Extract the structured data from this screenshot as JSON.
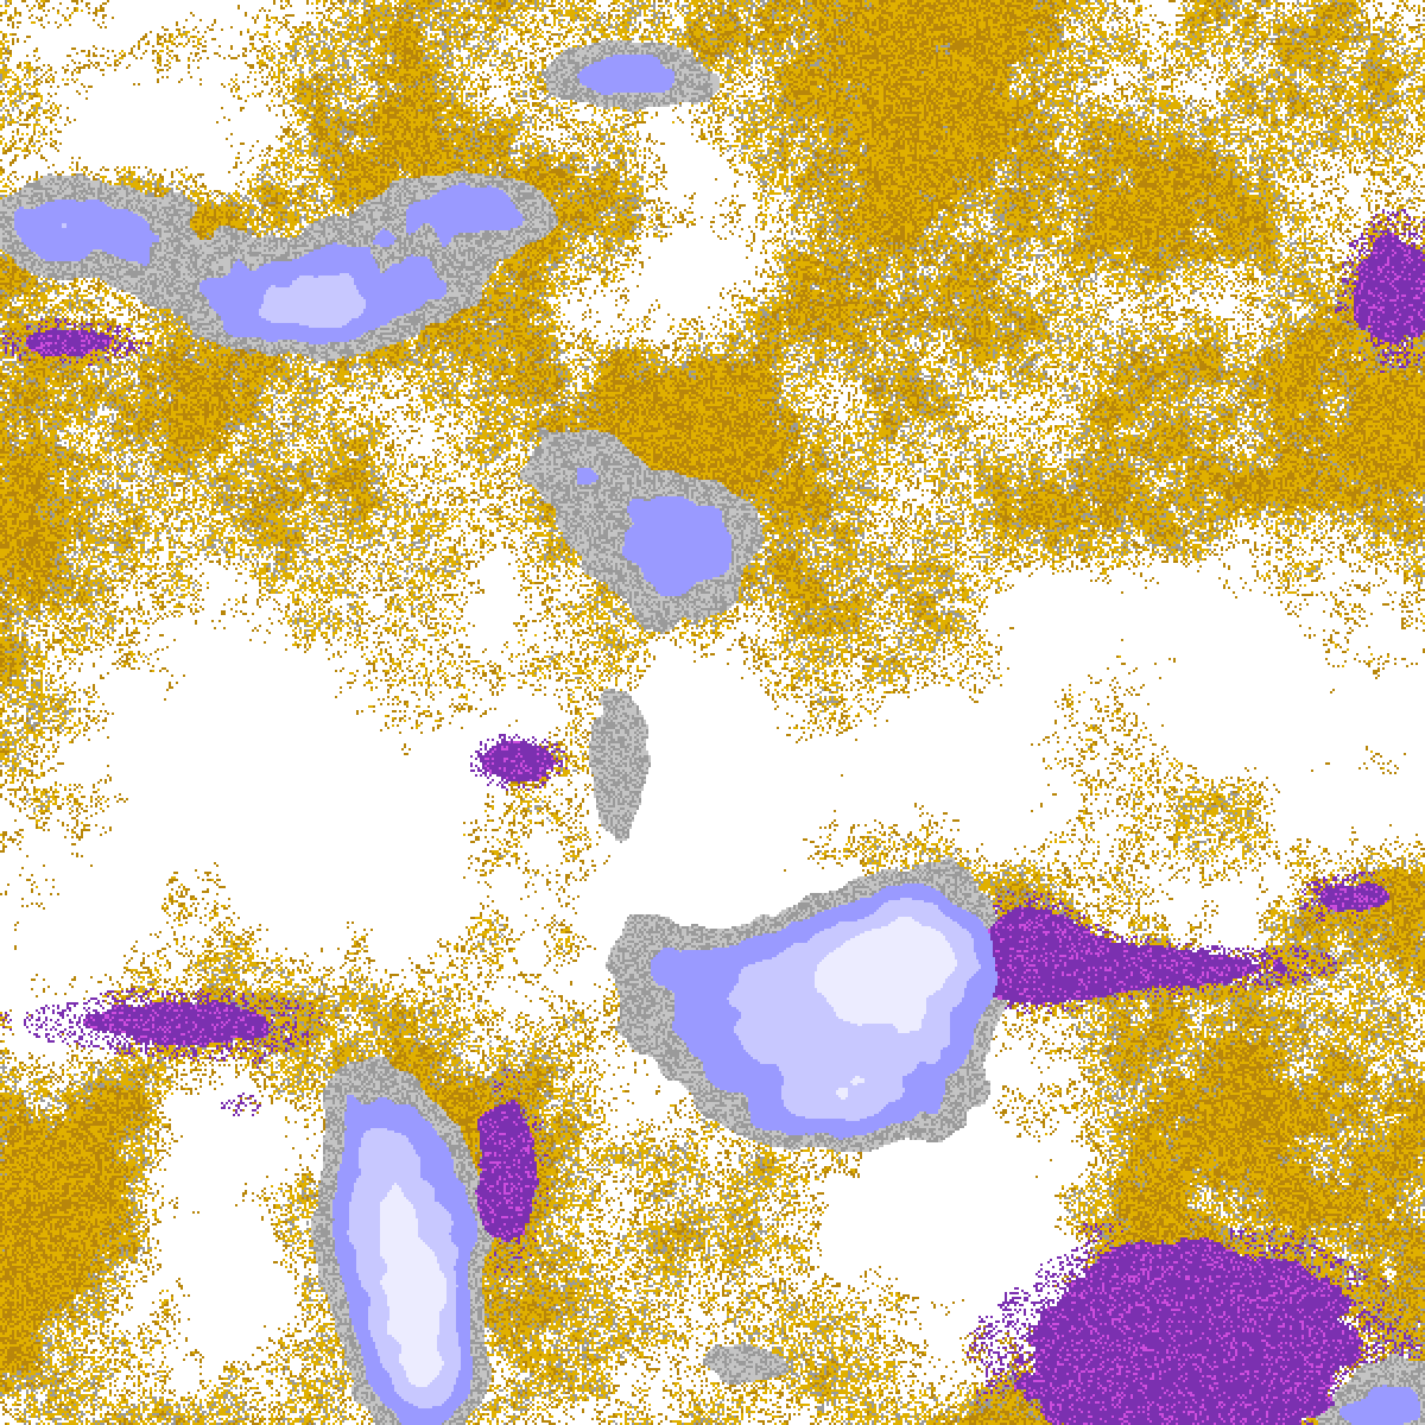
{
  "image": {
    "kind": "false-color satellite cloud classification",
    "palette": {
      "clear": "#ffffff",
      "gold_dark": "#b8860b",
      "gold_light": "#e0b000",
      "gray_dark": "#9a9a9a",
      "gray_light": "#c4c4c4",
      "lavender_pale": "#ececff",
      "lavender": "#c8c8ff",
      "periwinkle": "#9a9aff",
      "purple": "#7b30b0",
      "magenta": "#cc4ddd"
    }
  }
}
